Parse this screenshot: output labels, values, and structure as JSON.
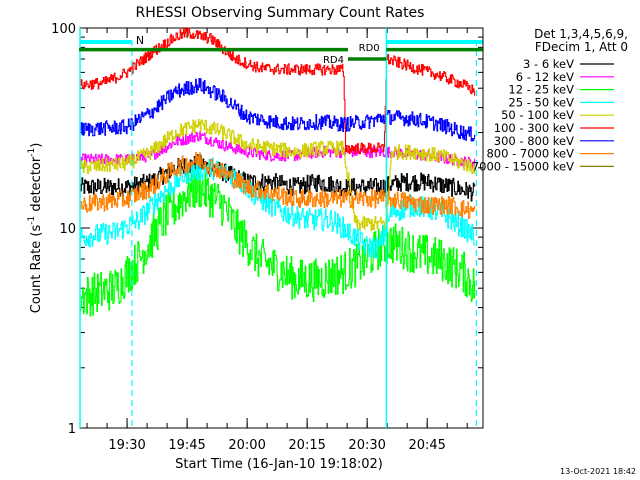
{
  "chart_data": {
    "type": "line",
    "title": "RHESSI Observing Summary Count Rates",
    "xlabel": "Start Time (16-Jan-10 19:18:02)",
    "ylabel_main": "Count Rate (s",
    "ylabel_sup": "-1",
    "ylabel_tail": " detector",
    "ylabel_sup2": "-1",
    "ylabel_end": ")",
    "y_scale": "log",
    "ylim": [
      1,
      100
    ],
    "y_ticks": [
      {
        "value": 1,
        "label": "1"
      },
      {
        "value": 10,
        "label": "10"
      },
      {
        "value": 100,
        "label": "100"
      }
    ],
    "xlim": [
      19.3039,
      20.9825
    ],
    "x_ticks": [
      {
        "value": 19.5,
        "label": "19:30"
      },
      {
        "value": 19.75,
        "label": "19:45"
      },
      {
        "value": 20.0,
        "label": "20:00"
      },
      {
        "value": 20.25,
        "label": "20:15"
      },
      {
        "value": 20.5,
        "label": "20:30"
      },
      {
        "value": 20.75,
        "label": "20:45"
      }
    ],
    "legend_header": [
      "Det 1,3,4,5,6,9,",
      "FDecim 1, Att 0"
    ],
    "legend_position": "right",
    "series": [
      {
        "name": "3 - 6 keV",
        "color": "#000000",
        "points": [
          [
            19.3,
            16
          ],
          [
            19.5,
            16
          ],
          [
            19.6,
            17
          ],
          [
            19.7,
            20
          ],
          [
            19.8,
            21
          ],
          [
            19.9,
            19
          ],
          [
            20.0,
            17
          ],
          [
            20.1,
            17
          ],
          [
            20.2,
            16
          ],
          [
            20.3,
            17
          ],
          [
            20.4,
            16
          ],
          [
            20.55,
            16
          ],
          [
            20.65,
            17
          ],
          [
            20.75,
            17
          ],
          [
            20.85,
            16
          ],
          [
            20.95,
            15
          ]
        ],
        "noise": 1.05
      },
      {
        "name": "6 - 12 keV",
        "color": "#ff00ff",
        "points": [
          [
            19.3,
            22
          ],
          [
            19.5,
            22
          ],
          [
            19.6,
            23
          ],
          [
            19.7,
            27
          ],
          [
            19.8,
            29
          ],
          [
            19.9,
            26
          ],
          [
            20.0,
            24
          ],
          [
            20.1,
            23
          ],
          [
            20.2,
            23
          ],
          [
            20.3,
            24
          ],
          [
            20.39,
            24
          ],
          [
            20.4,
            24
          ],
          [
            20.55,
            24
          ],
          [
            20.6,
            24
          ],
          [
            20.75,
            23
          ],
          [
            20.85,
            22
          ],
          [
            20.95,
            21
          ]
        ],
        "noise": 1.03
      },
      {
        "name": "12 - 25 keV",
        "color": "#00ff00",
        "points": [
          [
            19.3,
            4.5
          ],
          [
            19.45,
            5
          ],
          [
            19.55,
            7
          ],
          [
            19.65,
            11
          ],
          [
            19.75,
            15
          ],
          [
            19.8,
            16
          ],
          [
            19.9,
            13
          ],
          [
            19.95,
            10
          ],
          [
            20.05,
            7
          ],
          [
            20.15,
            6
          ],
          [
            20.2,
            5.5
          ],
          [
            20.3,
            5.5
          ],
          [
            20.4,
            6
          ],
          [
            20.5,
            7
          ],
          [
            20.55,
            8
          ],
          [
            20.6,
            8.5
          ],
          [
            20.7,
            7.5
          ],
          [
            20.8,
            7
          ],
          [
            20.9,
            6
          ],
          [
            20.95,
            5
          ]
        ],
        "noise": 1.12
      },
      {
        "name": "25 - 50 keV",
        "color": "#00ffff",
        "points": [
          [
            19.3,
            9
          ],
          [
            19.45,
            9.5
          ],
          [
            19.55,
            11
          ],
          [
            19.65,
            15
          ],
          [
            19.75,
            19
          ],
          [
            19.85,
            20
          ],
          [
            19.95,
            18
          ],
          [
            20.05,
            14
          ],
          [
            20.15,
            12
          ],
          [
            20.25,
            11
          ],
          [
            20.35,
            11
          ],
          [
            20.4,
            10
          ],
          [
            20.5,
            8
          ],
          [
            20.55,
            8
          ],
          [
            20.6,
            12
          ],
          [
            20.7,
            13
          ],
          [
            20.8,
            12
          ],
          [
            20.9,
            10
          ],
          [
            20.95,
            9
          ]
        ],
        "noise": 1.06
      },
      {
        "name": "50 - 100 keV",
        "color": "#d0d000",
        "points": [
          [
            19.3,
            20
          ],
          [
            19.5,
            21
          ],
          [
            19.6,
            24
          ],
          [
            19.7,
            30
          ],
          [
            19.8,
            33
          ],
          [
            19.9,
            30
          ],
          [
            20.0,
            26
          ],
          [
            20.1,
            25
          ],
          [
            20.2,
            24
          ],
          [
            20.3,
            25
          ],
          [
            20.4,
            25
          ],
          [
            20.45,
            10.5
          ],
          [
            20.58,
            10.5
          ],
          [
            20.6,
            24
          ],
          [
            20.7,
            24
          ],
          [
            20.8,
            23
          ],
          [
            20.9,
            21
          ],
          [
            20.95,
            20
          ]
        ],
        "noise": 1.04
      },
      {
        "name": "100 - 300 keV",
        "color": "#ff0000",
        "points": [
          [
            19.3,
            52
          ],
          [
            19.4,
            53
          ],
          [
            19.5,
            60
          ],
          [
            19.6,
            75
          ],
          [
            19.7,
            90
          ],
          [
            19.75,
            95
          ],
          [
            19.85,
            88
          ],
          [
            19.95,
            70
          ],
          [
            20.05,
            63
          ],
          [
            20.15,
            62
          ],
          [
            20.25,
            62
          ],
          [
            20.35,
            62
          ],
          [
            20.4,
            62
          ],
          [
            20.41,
            25
          ],
          [
            20.57,
            25
          ],
          [
            20.58,
            70
          ],
          [
            20.7,
            63
          ],
          [
            20.8,
            58
          ],
          [
            20.9,
            52
          ],
          [
            20.95,
            48
          ]
        ],
        "noise": 1.03
      },
      {
        "name": "300 - 800 keV",
        "color": "#0000ff",
        "points": [
          [
            19.3,
            31
          ],
          [
            19.5,
            32
          ],
          [
            19.6,
            38
          ],
          [
            19.7,
            48
          ],
          [
            19.8,
            52
          ],
          [
            19.9,
            45
          ],
          [
            20.0,
            36
          ],
          [
            20.1,
            34
          ],
          [
            20.2,
            33
          ],
          [
            20.3,
            34
          ],
          [
            20.4,
            33
          ],
          [
            20.5,
            34
          ],
          [
            20.58,
            36
          ],
          [
            20.7,
            35
          ],
          [
            20.8,
            33
          ],
          [
            20.9,
            30
          ],
          [
            20.95,
            29
          ]
        ],
        "noise": 1.04
      },
      {
        "name": "800 - 7000 keV",
        "color": "#ff8000",
        "points": [
          [
            19.3,
            13
          ],
          [
            19.5,
            14
          ],
          [
            19.6,
            16
          ],
          [
            19.7,
            20
          ],
          [
            19.8,
            22
          ],
          [
            19.9,
            19
          ],
          [
            20.0,
            16
          ],
          [
            20.1,
            15
          ],
          [
            20.2,
            14
          ],
          [
            20.3,
            14
          ],
          [
            20.4,
            14
          ],
          [
            20.55,
            14
          ],
          [
            20.6,
            14
          ],
          [
            20.75,
            13
          ],
          [
            20.85,
            13
          ],
          [
            20.95,
            12
          ]
        ],
        "noise": 1.05
      },
      {
        "name": "7000 - 15000 keV",
        "color": "#808000",
        "points": []
      }
    ],
    "overlays": {
      "cyan_bars": [
        {
          "x0": 19.304,
          "x1": 19.52,
          "label": "N"
        },
        {
          "x0": 20.58,
          "x1": 20.98,
          "label": ""
        }
      ],
      "green_bars": [
        {
          "x0": 19.3,
          "x1": 20.42,
          "level": 78,
          "label": ""
        },
        {
          "x0": 20.42,
          "x1": 20.58,
          "level": 70,
          "label_left": "RD4",
          "label_top": "RD0"
        },
        {
          "x0": 20.58,
          "x1": 20.98,
          "level": 78,
          "label": ""
        }
      ],
      "vlines_dashed": [
        19.52,
        20.955
      ],
      "vlines_solid": [
        19.304,
        20.58
      ]
    }
  },
  "footer": {
    "timestamp": "13-Oct-2021 18:42"
  }
}
